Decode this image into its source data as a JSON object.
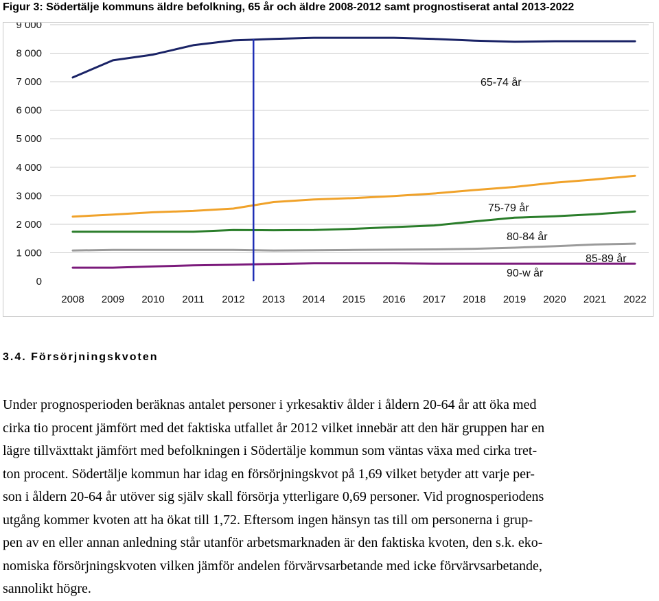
{
  "figure_title": "Figur 3: Södertälje kommuns äldre befolkning, 65 år och äldre 2008-2012 samt prognostiserat antal 2013-2022",
  "chart_data": {
    "type": "line",
    "title": "Figur 3: Södertälje kommuns äldre befolkning, 65 år och äldre 2008-2012 samt prognostiserat antal 2013-2022",
    "xlabel": "",
    "ylabel": "",
    "x": [
      2008,
      2009,
      2010,
      2011,
      2012,
      2013,
      2014,
      2015,
      2016,
      2017,
      2018,
      2019,
      2020,
      2021,
      2022
    ],
    "x_tick_labels": [
      "2008",
      "2009",
      "2010",
      "2011",
      "2012",
      "2013",
      "2014",
      "2015",
      "2016",
      "2017",
      "2018",
      "2019",
      "2020",
      "2021",
      "2022"
    ],
    "ylim": [
      0,
      9000
    ],
    "y_ticks": [
      0,
      1000,
      2000,
      3000,
      4000,
      5000,
      6000,
      7000,
      8000,
      9000
    ],
    "y_tick_labels": [
      "0",
      "1 000",
      "2 000",
      "3 000",
      "4 000",
      "5 000",
      "6 000",
      "7 000",
      "8 000",
      "9 000"
    ],
    "grid": true,
    "legend": "inline labels",
    "forecast_marker_x": 2012.5,
    "forecast_marker_color": "#1f2fb5",
    "series": [
      {
        "name": "65-74 år",
        "color": "#1a2366",
        "values": [
          7150,
          7750,
          7950,
          8280,
          8450,
          8500,
          8540,
          8540,
          8540,
          8500,
          8440,
          8400,
          8420,
          8420,
          8420
        ]
      },
      {
        "name": "75-79 år",
        "color": "#f0a22a",
        "values": [
          2270,
          2340,
          2420,
          2470,
          2550,
          2780,
          2870,
          2920,
          2990,
          3080,
          3200,
          3310,
          3460,
          3570,
          3700
        ]
      },
      {
        "name": "80-84 år",
        "color": "#2a7d2a",
        "values": [
          1740,
          1740,
          1740,
          1740,
          1800,
          1790,
          1800,
          1840,
          1900,
          1960,
          2100,
          2230,
          2280,
          2350,
          2450
        ]
      },
      {
        "name": "85-89 år",
        "color": "#9a9a9a",
        "values": [
          1080,
          1100,
          1100,
          1100,
          1100,
          1080,
          1090,
          1100,
          1110,
          1120,
          1140,
          1180,
          1230,
          1290,
          1320
        ]
      },
      {
        "name": "90-w år",
        "color": "#7b1a7b",
        "values": [
          480,
          480,
          520,
          560,
          580,
          610,
          630,
          630,
          630,
          620,
          620,
          620,
          620,
          620,
          620
        ]
      }
    ]
  },
  "section": {
    "heading": "3.4. Försörjningskvoten",
    "lines": [
      "Under prognosperioden beräknas antalet personer i yrkesaktiv ålder i åldern 20-64 år att öka med",
      "cirka tio procent jämfört med det faktiska utfallet år 2012 vilket innebär att den här gruppen har en",
      "lägre tillväxttakt jämfört med befolkningen i Södertälje kommun som väntas växa med cirka tret-",
      "ton procent. Södertälje kommun har idag en försörjningskvot på 1,69 vilket betyder att varje per-",
      "son i åldern 20-64 år utöver sig själv skall försörja ytterligare 0,69 personer. Vid prognosperiodens",
      "utgång kommer kvoten att ha ökat till 1,72. Eftersom ingen hänsyn tas till om personerna i grup-",
      "pen av en eller annan anledning står utanför arbetsmarknaden är den faktiska kvoten, den s.k. eko-",
      "nomiska försörjningskvoten vilken jämför andelen förvärvsarbetande med icke förvärvsarbetande,",
      "sannolikt högre."
    ]
  }
}
